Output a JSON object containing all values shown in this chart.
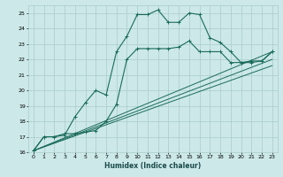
{
  "title": "",
  "xlabel": "Humidex (Indice chaleur)",
  "bg_color": "#cce8e8",
  "grid_color": "#aacccc",
  "line_color": "#1a6b5a",
  "xlim": [
    -0.5,
    23.5
  ],
  "ylim": [
    16,
    25.5
  ],
  "xticks": [
    0,
    1,
    2,
    3,
    4,
    5,
    6,
    7,
    8,
    9,
    10,
    11,
    12,
    13,
    14,
    15,
    16,
    17,
    18,
    19,
    20,
    21,
    22,
    23
  ],
  "yticks": [
    16,
    17,
    18,
    19,
    20,
    21,
    22,
    23,
    24,
    25
  ],
  "curve1_x": [
    0,
    1,
    2,
    3,
    4,
    5,
    6,
    7,
    8,
    9,
    10,
    11,
    12,
    13,
    14,
    15,
    16,
    17,
    18,
    19,
    20,
    21,
    22,
    23
  ],
  "curve1_y": [
    16.1,
    17.0,
    17.0,
    17.1,
    18.3,
    19.2,
    20.0,
    19.7,
    22.5,
    23.5,
    24.9,
    24.9,
    25.2,
    24.4,
    24.4,
    25.0,
    24.9,
    23.4,
    23.1,
    22.5,
    21.8,
    21.8,
    21.9,
    22.5
  ],
  "curve2_x": [
    0,
    1,
    2,
    3,
    4,
    5,
    6,
    7,
    8,
    9,
    10,
    11,
    12,
    13,
    14,
    15,
    16,
    17,
    18,
    19,
    20,
    21,
    22,
    23
  ],
  "curve2_y": [
    16.1,
    17.0,
    17.0,
    17.2,
    17.2,
    17.3,
    17.4,
    18.0,
    19.1,
    22.0,
    22.7,
    22.7,
    22.7,
    22.7,
    22.8,
    23.2,
    22.5,
    22.5,
    22.5,
    21.8,
    21.8,
    21.9,
    21.9,
    22.5
  ],
  "line1_x": [
    0,
    23
  ],
  "line1_y": [
    16.1,
    22.5
  ],
  "line2_x": [
    0,
    23
  ],
  "line2_y": [
    16.1,
    22.0
  ],
  "line3_x": [
    0,
    23
  ],
  "line3_y": [
    16.1,
    21.6
  ]
}
